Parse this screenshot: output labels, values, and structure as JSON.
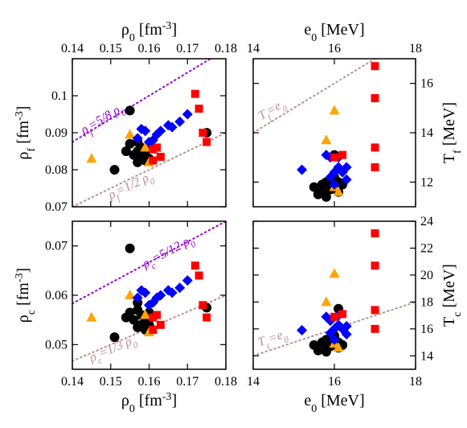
{
  "chart_data": [
    {
      "type": "scatter",
      "panel": "top-left",
      "xlabel": "ρ0 [fm-3]",
      "xlabel_position": "top",
      "ylabel": "ρf [fm-3]",
      "xlim": [
        0.14,
        0.18
      ],
      "ylim": [
        0.07,
        0.11
      ],
      "xticks": [
        "0.14",
        "0.15",
        "0.16",
        "0.17",
        "0.18"
      ],
      "yticks": [
        "0.07",
        "0.08",
        "0.09",
        "0.1"
      ],
      "series": [
        {
          "marker": "circle",
          "color": "#000000",
          "points": [
            [
              0.151,
              0.08
            ],
            [
              0.155,
              0.096
            ],
            [
              0.154,
              0.085
            ],
            [
              0.155,
              0.087
            ],
            [
              0.156,
              0.084
            ],
            [
              0.157,
              0.085
            ],
            [
              0.157,
              0.0875
            ],
            [
              0.158,
              0.083
            ],
            [
              0.158,
              0.086
            ],
            [
              0.159,
              0.084
            ],
            [
              0.16,
              0.086
            ],
            [
              0.157,
              0.082
            ],
            [
              0.159,
              0.0825
            ],
            [
              0.16,
              0.083
            ],
            [
              0.175,
              0.09
            ]
          ]
        },
        {
          "marker": "triangle",
          "color": "#ffa500",
          "points": [
            [
              0.145,
              0.083
            ],
            [
              0.155,
              0.0895
            ],
            [
              0.159,
              0.086
            ],
            [
              0.16,
              0.082
            ]
          ]
        },
        {
          "marker": "diamond",
          "color": "#0000ff",
          "points": [
            [
              0.157,
              0.0885
            ],
            [
              0.158,
              0.091
            ],
            [
              0.159,
              0.0905
            ],
            [
              0.16,
              0.0875
            ],
            [
              0.161,
              0.088
            ],
            [
              0.162,
              0.0895
            ],
            [
              0.163,
              0.0905
            ],
            [
              0.165,
              0.092
            ],
            [
              0.166,
              0.0915
            ],
            [
              0.168,
              0.093
            ],
            [
              0.17,
              0.095
            ]
          ]
        },
        {
          "marker": "square",
          "color": "#ff0000",
          "points": [
            [
              0.161,
              0.0855
            ],
            [
              0.162,
              0.086
            ],
            [
              0.163,
              0.0835
            ],
            [
              0.161,
              0.0825
            ],
            [
              0.172,
              0.1005
            ],
            [
              0.173,
              0.0965
            ],
            [
              0.174,
              0.09
            ],
            [
              0.175,
              0.0875
            ]
          ]
        }
      ],
      "reference_lines": [
        {
          "label_main": "ρf",
          "label_rest": "=5/8 ρ0",
          "slope": 0.625,
          "color": "#9400d3"
        },
        {
          "label_main": "ρf",
          "label_rest": "=1/2 ρ0",
          "slope": 0.5,
          "color": "#bc8f8f"
        }
      ]
    },
    {
      "type": "scatter",
      "panel": "top-right",
      "xlabel": "e0 [MeV]",
      "xlabel_position": "top",
      "ylabel": "Tf [MeV]",
      "ylabel_position": "right",
      "xlim": [
        14,
        18
      ],
      "ylim": [
        11,
        17
      ],
      "xticks": [
        "14",
        "16",
        "18"
      ],
      "yticks": [
        "12",
        "14",
        "16"
      ],
      "series": [
        {
          "marker": "circle",
          "color": "#000000",
          "points": [
            [
              15.5,
              11.8
            ],
            [
              15.6,
              11.5
            ],
            [
              15.7,
              11.9
            ],
            [
              15.8,
              12.0
            ],
            [
              15.8,
              11.4
            ],
            [
              15.9,
              11.7
            ],
            [
              15.9,
              12.1
            ],
            [
              16.0,
              11.8
            ],
            [
              16.0,
              12.2
            ],
            [
              16.1,
              11.6
            ],
            [
              16.1,
              12.0
            ],
            [
              16.2,
              11.9
            ],
            [
              15.7,
              11.6
            ],
            [
              16.0,
              13.1
            ]
          ]
        },
        {
          "marker": "triangle",
          "color": "#ffa500",
          "points": [
            [
              15.8,
              13.7
            ],
            [
              16.0,
              14.9
            ],
            [
              16.0,
              11.8
            ],
            [
              16.1,
              11.6
            ]
          ]
        },
        {
          "marker": "diamond",
          "color": "#0000ff",
          "points": [
            [
              15.2,
              12.5
            ],
            [
              15.8,
              13.1
            ],
            [
              15.9,
              13.0
            ],
            [
              15.9,
              12.2
            ],
            [
              16.0,
              12.4
            ],
            [
              16.0,
              11.9
            ],
            [
              16.1,
              12.6
            ],
            [
              16.1,
              13.0
            ],
            [
              16.2,
              12.4
            ],
            [
              16.3,
              12.6
            ],
            [
              16.3,
              12.1
            ]
          ]
        },
        {
          "marker": "square",
          "color": "#ff0000",
          "points": [
            [
              16.0,
              13.0
            ],
            [
              16.2,
              13.1
            ],
            [
              17.0,
              16.7
            ],
            [
              17.0,
              15.4
            ],
            [
              17.0,
              13.4
            ],
            [
              17.0,
              12.6
            ]
          ]
        }
      ],
      "reference_lines": [
        {
          "label_main": "Tf",
          "label_rest": "=e0",
          "slope": 1,
          "color": "#bc8f8f"
        }
      ]
    },
    {
      "type": "scatter",
      "panel": "bottom-left",
      "xlabel": "ρ0 [fm-3]",
      "ylabel": "ρc [fm-3]",
      "xlim": [
        0.14,
        0.18
      ],
      "ylim": [
        0.045,
        0.075
      ],
      "xticks": [
        "0.14",
        "0.15",
        "0.16",
        "0.17",
        "0.18"
      ],
      "yticks": [
        "0.05",
        "0.06",
        "0.07"
      ],
      "series": [
        {
          "marker": "circle",
          "color": "#000000",
          "points": [
            [
              0.151,
              0.0515
            ],
            [
              0.155,
              0.0695
            ],
            [
              0.154,
              0.0555
            ],
            [
              0.155,
              0.0565
            ],
            [
              0.156,
              0.055
            ],
            [
              0.157,
              0.057
            ],
            [
              0.157,
              0.0585
            ],
            [
              0.158,
              0.054
            ],
            [
              0.158,
              0.056
            ],
            [
              0.159,
              0.0545
            ],
            [
              0.16,
              0.0565
            ],
            [
              0.157,
              0.0535
            ],
            [
              0.159,
              0.053
            ],
            [
              0.16,
              0.054
            ],
            [
              0.175,
              0.0575
            ]
          ]
        },
        {
          "marker": "triangle",
          "color": "#ffa500",
          "points": [
            [
              0.145,
              0.0555
            ],
            [
              0.155,
              0.06
            ],
            [
              0.159,
              0.056
            ],
            [
              0.16,
              0.0525
            ]
          ]
        },
        {
          "marker": "diamond",
          "color": "#0000ff",
          "points": [
            [
              0.157,
              0.0595
            ],
            [
              0.158,
              0.061
            ],
            [
              0.159,
              0.0605
            ],
            [
              0.16,
              0.058
            ],
            [
              0.161,
              0.0585
            ],
            [
              0.162,
              0.0595
            ],
            [
              0.163,
              0.06
            ],
            [
              0.165,
              0.061
            ],
            [
              0.166,
              0.0605
            ],
            [
              0.168,
              0.0615
            ],
            [
              0.17,
              0.063
            ]
          ]
        },
        {
          "marker": "square",
          "color": "#ff0000",
          "points": [
            [
              0.161,
              0.0555
            ],
            [
              0.162,
              0.056
            ],
            [
              0.163,
              0.054
            ],
            [
              0.161,
              0.053
            ],
            [
              0.172,
              0.066
            ],
            [
              0.173,
              0.064
            ],
            [
              0.174,
              0.058
            ],
            [
              0.175,
              0.0555
            ]
          ]
        }
      ],
      "reference_lines": [
        {
          "label_main": "ρc",
          "label_rest": "=5/12 ρ0",
          "slope": 0.41667,
          "color": "#9400d3"
        },
        {
          "label_main": "ρc",
          "label_rest": "=1/3 ρ0",
          "slope": 0.33333,
          "color": "#bc8f8f"
        }
      ]
    },
    {
      "type": "scatter",
      "panel": "bottom-right",
      "xlabel": "e0 [MeV]",
      "ylabel": "Tc [MeV]",
      "ylabel_position": "right",
      "xlim": [
        14,
        18
      ],
      "ylim": [
        13,
        24
      ],
      "xticks": [
        "14",
        "16",
        "18"
      ],
      "yticks": [
        "14",
        "16",
        "18",
        "20",
        "22",
        "24"
      ],
      "series": [
        {
          "marker": "circle",
          "color": "#000000",
          "points": [
            [
              15.5,
              14.8
            ],
            [
              15.6,
              14.4
            ],
            [
              15.7,
              15.0
            ],
            [
              15.8,
              15.2
            ],
            [
              15.8,
              14.3
            ],
            [
              15.9,
              14.7
            ],
            [
              15.9,
              15.3
            ],
            [
              16.0,
              14.9
            ],
            [
              16.0,
              15.5
            ],
            [
              16.1,
              14.6
            ],
            [
              16.1,
              15.0
            ],
            [
              16.2,
              14.8
            ],
            [
              15.7,
              14.6
            ],
            [
              16.1,
              17.5
            ]
          ]
        },
        {
          "marker": "triangle",
          "color": "#ffa500",
          "points": [
            [
              15.8,
              18.0
            ],
            [
              16.0,
              20.1
            ],
            [
              16.0,
              14.9
            ],
            [
              16.1,
              14.6
            ]
          ]
        },
        {
          "marker": "diamond",
          "color": "#0000ff",
          "points": [
            [
              15.2,
              15.9
            ],
            [
              15.8,
              16.9
            ],
            [
              15.9,
              16.6
            ],
            [
              15.9,
              15.7
            ],
            [
              16.0,
              16.0
            ],
            [
              16.0,
              15.2
            ],
            [
              16.1,
              16.3
            ],
            [
              16.1,
              17.0
            ],
            [
              16.2,
              16.0
            ],
            [
              16.3,
              16.2
            ],
            [
              16.3,
              15.6
            ]
          ]
        },
        {
          "marker": "square",
          "color": "#ff0000",
          "points": [
            [
              16.0,
              16.9
            ],
            [
              16.2,
              17.1
            ],
            [
              17.0,
              23.1
            ],
            [
              17.0,
              20.7
            ],
            [
              17.0,
              17.4
            ],
            [
              17.0,
              16.0
            ]
          ]
        }
      ],
      "reference_lines": [
        {
          "label_main": "Tc",
          "label_rest": "=e0",
          "slope": 1,
          "color": "#bc8f8f"
        }
      ]
    }
  ]
}
